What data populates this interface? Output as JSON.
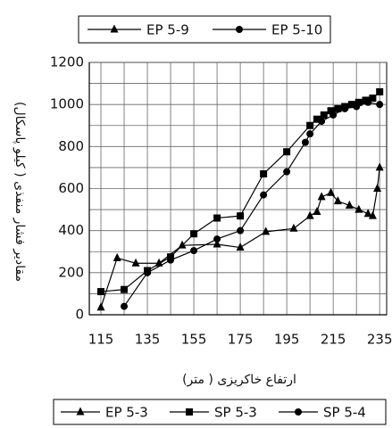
{
  "chart_data": {
    "type": "line",
    "y_label": "مقادیر فشار منفذی ( کیلو پاسکال)",
    "x_label": "ارتفاع خاکریزی ( متر)",
    "top_legend": [
      {
        "name": "EP 5-9",
        "marker": "triangle"
      },
      {
        "name": "EP 5-10",
        "marker": "circle"
      }
    ],
    "xlim": [
      110,
      238
    ],
    "xticks": [
      115,
      135,
      155,
      175,
      195,
      215,
      235
    ],
    "x_minor_grid": [
      125,
      145,
      165,
      185,
      205,
      225
    ],
    "ylim": [
      0,
      1200
    ],
    "yticks": [
      0,
      200,
      400,
      600,
      800,
      1000,
      1200
    ],
    "y_minor_grid": [
      100,
      300,
      500,
      700,
      900,
      1100
    ],
    "grid": true,
    "series": [
      {
        "name": "EP 5-3",
        "marker": "triangle",
        "color": "#000000",
        "x": [
          115,
          122,
          130,
          140,
          150,
          165,
          175,
          186,
          198,
          205,
          208,
          210,
          214,
          217,
          222,
          226,
          230,
          232,
          234,
          235
        ],
        "values": [
          35,
          270,
          245,
          245,
          330,
          335,
          320,
          395,
          410,
          470,
          490,
          560,
          580,
          540,
          520,
          500,
          480,
          470,
          600,
          700
        ]
      },
      {
        "name": "SP 5-3",
        "marker": "square",
        "color": "#000000",
        "x": [
          115,
          125,
          135,
          145,
          155,
          165,
          175,
          185,
          195,
          205,
          208,
          211,
          214,
          217,
          220,
          223,
          226,
          229,
          232,
          235
        ],
        "values": [
          110,
          120,
          210,
          275,
          385,
          460,
          470,
          670,
          775,
          900,
          930,
          950,
          970,
          980,
          990,
          1000,
          1010,
          1020,
          1030,
          1060
        ]
      },
      {
        "name": "SP 5-4",
        "marker": "circle",
        "color": "#000000",
        "x": [
          125,
          135,
          145,
          155,
          165,
          175,
          185,
          195,
          203,
          205,
          210,
          215,
          220,
          225,
          230,
          235
        ],
        "values": [
          40,
          200,
          260,
          305,
          360,
          400,
          570,
          680,
          820,
          860,
          920,
          950,
          980,
          990,
          1010,
          1000
        ]
      }
    ]
  }
}
